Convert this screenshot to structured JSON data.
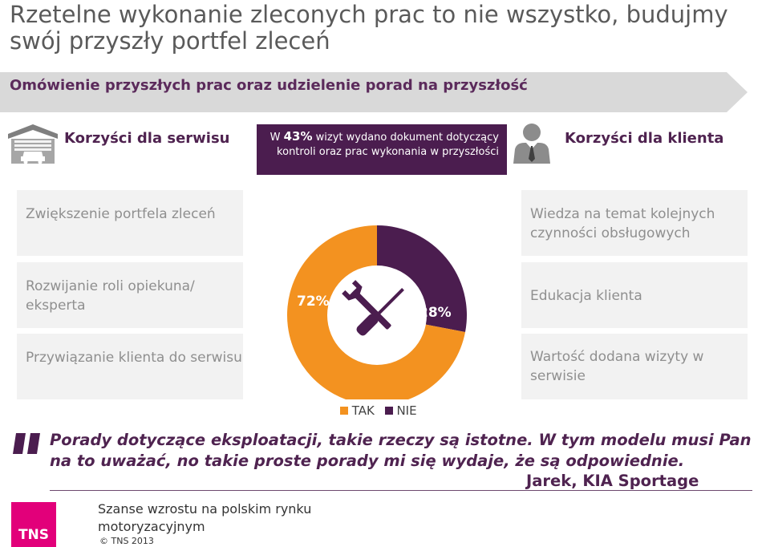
{
  "title": "Rzetelne wykonanie zleconych prac to nie wszystko, budujmy swój przyszły portfel zleceń",
  "banner": "Omówienie przyszłych prac oraz udzielenie porad na przyszłość",
  "left_header": "Korzyści dla serwisu",
  "right_header": "Korzyści dla klienta",
  "stat": {
    "prefix": "W ",
    "value": "43%",
    "text": " wizyt wydano dokument dotyczący kontroli oraz prac wykonania w przyszłości"
  },
  "left_cards": [
    "Zwiększenie portfela zleceń",
    "Rozwijanie roli opiekuna/ eksperta",
    "Przywiązanie klienta do serwisu"
  ],
  "right_cards": [
    "Wiedza na temat kolejnych czynności obsługowych",
    "Edukacja klienta",
    "Wartość dodana wizyty w serwisie"
  ],
  "chart_data": {
    "type": "pie",
    "categories": [
      "TAK",
      "NIE"
    ],
    "values": [
      72,
      28
    ],
    "labels": [
      "72%",
      "28%"
    ],
    "legend": "bottom",
    "colors": [
      "#f39220",
      "#4b1d4f"
    ]
  },
  "colors": {
    "tak": "#f39220",
    "nie": "#4b1d4f",
    "purple": "#4f2350",
    "tns": "#e2007a"
  },
  "quote": {
    "text": "Porady dotyczące eksploatacji, takie rzeczy są istotne. W tym modelu musi Pan na to uważać, no takie proste porady mi się wydaje, że są odpowiednie.",
    "author": "Jarek, KIA Sportage"
  },
  "footer": {
    "logo": "TNS",
    "title": "Szanse wzrostu na polskim rynku motoryzacyjnym",
    "copyright": "© TNS   2013"
  },
  "icons": [
    "garage-car-icon",
    "person-tie-icon",
    "wrench-screwdriver-icon",
    "quote-icon"
  ]
}
